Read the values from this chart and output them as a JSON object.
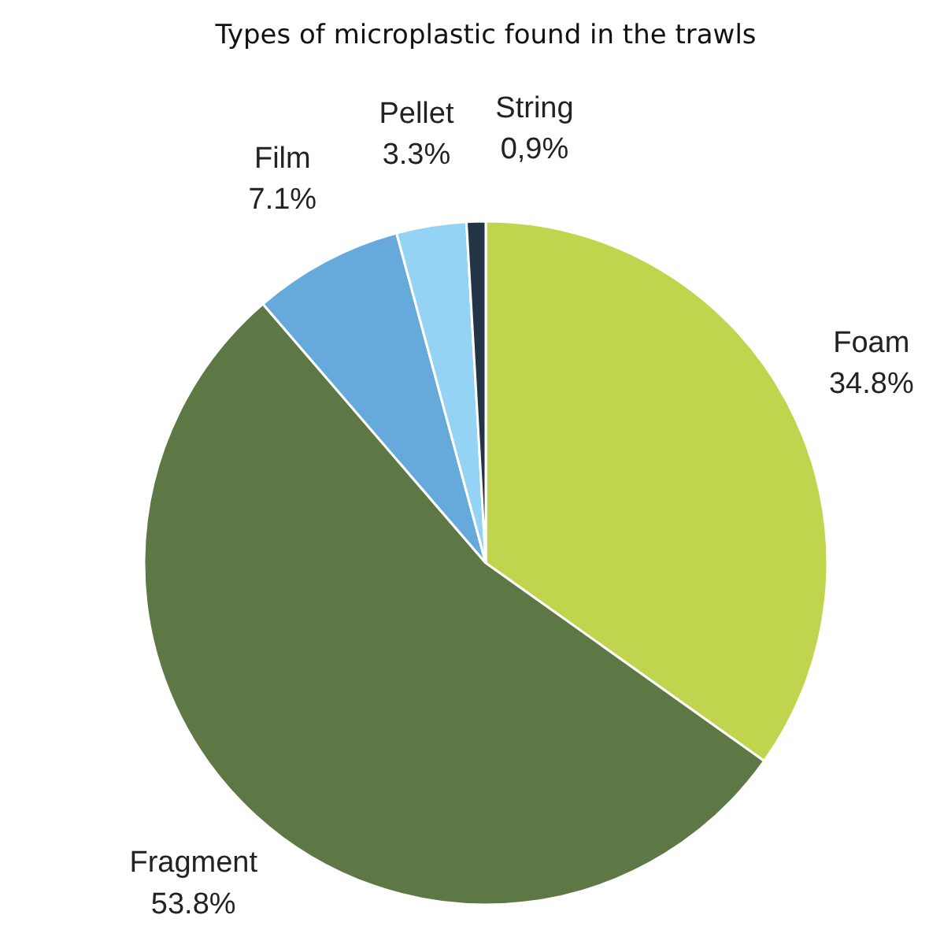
{
  "chart_data": {
    "type": "pie",
    "title": "Types of microplastic found in the trawls",
    "categories": [
      "Foam",
      "Fragment",
      "Film",
      "Pellet",
      "String"
    ],
    "values": [
      34.8,
      53.8,
      7.1,
      3.3,
      0.9
    ],
    "value_labels": [
      "34.8%",
      "53.8%",
      "7.1%",
      "3.3%",
      "0,9%"
    ],
    "colors": [
      "#c0d44e",
      "#5e7845",
      "#66aadb",
      "#94d3f3",
      "#243447"
    ]
  }
}
